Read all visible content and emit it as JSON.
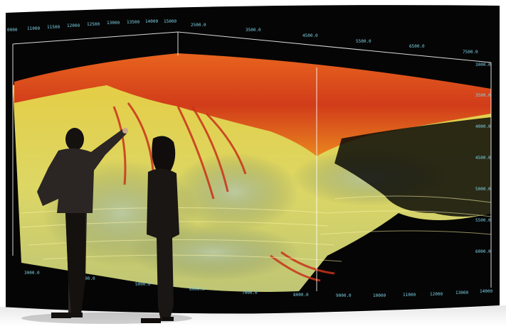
{
  "scene": {
    "description_colors": {
      "screen_background": "#050505",
      "seismic_red": "#d8431c",
      "seismic_orange": "#f08a1e",
      "seismic_yellow": "#f2e24a",
      "seismic_pale": "#c9d8a8",
      "axis_cyan": "#7fd3e6",
      "wall_white": "#ffffff"
    }
  },
  "axes": {
    "top_left_labels": [
      "0000",
      "11000",
      "11500",
      "12000",
      "12500",
      "13000",
      "13500",
      "14000",
      "15000"
    ],
    "top_right_labels": [
      "2500.0",
      "3500.0",
      "4500.0",
      "5500.0",
      "6500.0",
      "7500.0"
    ],
    "right_labels": [
      "3000.0",
      "3500.0",
      "4000.0",
      "4500.0",
      "5000.0",
      "5500.0",
      "6000.0"
    ],
    "bottom_labels": [
      "3000.0",
      "4000.0",
      "5000.0",
      "6000.0",
      "7000.0",
      "8000.0",
      "9000.0",
      "10000",
      "11000",
      "12000",
      "13000",
      "14000"
    ]
  }
}
